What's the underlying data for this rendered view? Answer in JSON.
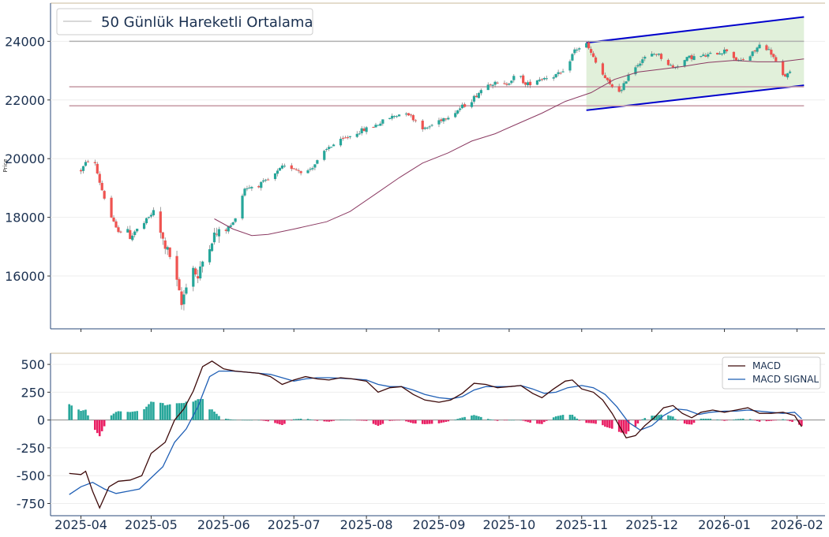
{
  "chart_data": [
    {
      "type": "candlestick",
      "panel": "price",
      "ylabel": "Price",
      "ylim": [
        14200,
        25300
      ],
      "yticks": [
        16000,
        18000,
        20000,
        22000,
        24000
      ],
      "grid": true,
      "legend": {
        "position": "top-left",
        "entries": [
          "50 Günlük Hareketli Ortalama"
        ]
      },
      "colors": {
        "up": "#26a69a",
        "down": "#ef5350",
        "ma": "#8b3a62",
        "channel": "#0000cc",
        "channel_fill": "#dcedd3",
        "hline_grey": "#b0b0b0",
        "hline_pink": "#c9a0aa"
      },
      "horizontal_lines": [
        {
          "value": 24000,
          "color": "grey",
          "from": "2025-03-27",
          "to": "2026-02-04"
        },
        {
          "value": 22450,
          "color": "pink",
          "from": "2025-03-27",
          "to": "2026-02-04"
        },
        {
          "value": 21800,
          "color": "pink",
          "from": "2025-03-27",
          "to": "2026-02-04"
        }
      ],
      "channel": {
        "upper": [
          [
            "2025-11-03",
            23950
          ],
          [
            "2026-02-04",
            24830
          ]
        ],
        "lower": [
          [
            "2025-11-03",
            21650
          ],
          [
            "2026-02-04",
            22500
          ]
        ]
      },
      "moving_average_50": [
        [
          "2025-05-28",
          17950
        ],
        [
          "2025-06-05",
          17600
        ],
        [
          "2025-06-13",
          17380
        ],
        [
          "2025-06-20",
          17420
        ],
        [
          "2025-07-01",
          17600
        ],
        [
          "2025-07-15",
          17850
        ],
        [
          "2025-07-25",
          18200
        ],
        [
          "2025-08-05",
          18800
        ],
        [
          "2025-08-15",
          19350
        ],
        [
          "2025-08-25",
          19850
        ],
        [
          "2025-09-05",
          20200
        ],
        [
          "2025-09-15",
          20600
        ],
        [
          "2025-09-25",
          20850
        ],
        [
          "2025-10-05",
          21200
        ],
        [
          "2025-10-15",
          21550
        ],
        [
          "2025-10-25",
          21950
        ],
        [
          "2025-11-05",
          22250
        ],
        [
          "2025-11-15",
          22700
        ],
        [
          "2025-11-25",
          22950
        ],
        [
          "2025-12-05",
          23050
        ],
        [
          "2025-12-15",
          23150
        ],
        [
          "2025-12-25",
          23280
        ],
        [
          "2026-01-05",
          23350
        ],
        [
          "2026-01-15",
          23300
        ],
        [
          "2026-01-25",
          23300
        ],
        [
          "2026-02-04",
          23400
        ]
      ],
      "anchors": [
        [
          "2025-04-01",
          19600
        ],
        [
          "2025-04-04",
          19950
        ],
        [
          "2025-04-07",
          19800
        ],
        [
          "2025-04-09",
          19200
        ],
        [
          "2025-04-12",
          18400
        ],
        [
          "2025-04-16",
          17600
        ],
        [
          "2025-04-22",
          17400
        ],
        [
          "2025-04-27",
          17700
        ],
        [
          "2025-05-02",
          18200
        ],
        [
          "2025-05-06",
          17200
        ],
        [
          "2025-05-10",
          16500
        ],
        [
          "2025-05-14",
          15000
        ],
        [
          "2025-05-18",
          16500
        ],
        [
          "2025-05-21",
          15900
        ],
        [
          "2025-05-24",
          16800
        ],
        [
          "2025-05-28",
          17400
        ],
        [
          "2025-06-01",
          17500
        ],
        [
          "2025-06-05",
          17800
        ],
        [
          "2025-06-10",
          19000
        ],
        [
          "2025-06-16",
          19100
        ],
        [
          "2025-06-21",
          19300
        ],
        [
          "2025-06-26",
          19700
        ],
        [
          "2025-07-01",
          19700
        ],
        [
          "2025-07-06",
          19500
        ],
        [
          "2025-07-11",
          19900
        ],
        [
          "2025-07-16",
          20400
        ],
        [
          "2025-07-21",
          20600
        ],
        [
          "2025-07-28",
          20900
        ],
        [
          "2025-08-04",
          21100
        ],
        [
          "2025-08-11",
          21400
        ],
        [
          "2025-08-18",
          21600
        ],
        [
          "2025-08-26",
          21000
        ],
        [
          "2025-09-01",
          21300
        ],
        [
          "2025-09-08",
          21600
        ],
        [
          "2025-09-15",
          22000
        ],
        [
          "2025-09-22",
          22600
        ],
        [
          "2025-09-29",
          22500
        ],
        [
          "2025-10-05",
          22900
        ],
        [
          "2025-10-08",
          22500
        ],
        [
          "2025-10-13",
          22700
        ],
        [
          "2025-10-18",
          22800
        ],
        [
          "2025-10-24",
          22900
        ],
        [
          "2025-10-29",
          23700
        ],
        [
          "2025-11-03",
          23900
        ],
        [
          "2025-11-08",
          23100
        ],
        [
          "2025-11-13",
          22500
        ],
        [
          "2025-11-18",
          22300
        ],
        [
          "2025-11-21",
          22900
        ],
        [
          "2025-11-27",
          23400
        ],
        [
          "2025-12-03",
          23600
        ],
        [
          "2025-12-07",
          23300
        ],
        [
          "2025-12-10",
          23100
        ],
        [
          "2025-12-17",
          23450
        ],
        [
          "2025-12-24",
          23500
        ],
        [
          "2026-01-02",
          23700
        ],
        [
          "2026-01-07",
          23300
        ],
        [
          "2026-01-12",
          23500
        ],
        [
          "2026-01-17",
          23950
        ],
        [
          "2026-01-21",
          23600
        ],
        [
          "2026-01-26",
          22800
        ],
        [
          "2026-01-29",
          22900
        ]
      ]
    },
    {
      "type": "line+bar",
      "panel": "macd",
      "ylim": [
        -860,
        600
      ],
      "yticks": [
        -750,
        -500,
        -250,
        0,
        250,
        500
      ],
      "legend": {
        "position": "top-right",
        "entries": [
          "MACD",
          "MACD SIGNAL"
        ]
      },
      "colors": {
        "macd": "#3d0a0a",
        "signal": "#1f5fb5",
        "hist_pos": "#26a69a",
        "hist_neg": "#e91e63",
        "zero": "#888888"
      },
      "macd": [
        [
          "2025-03-27",
          -480
        ],
        [
          "2025-04-01",
          -490
        ],
        [
          "2025-04-03",
          -460
        ],
        [
          "2025-04-06",
          -640
        ],
        [
          "2025-04-09",
          -790
        ],
        [
          "2025-04-13",
          -600
        ],
        [
          "2025-04-17",
          -550
        ],
        [
          "2025-04-22",
          -540
        ],
        [
          "2025-04-27",
          -500
        ],
        [
          "2025-05-01",
          -300
        ],
        [
          "2025-05-07",
          -200
        ],
        [
          "2025-05-11",
          0
        ],
        [
          "2025-05-15",
          100
        ],
        [
          "2025-05-19",
          260
        ],
        [
          "2025-05-23",
          480
        ],
        [
          "2025-05-27",
          530
        ],
        [
          "2025-06-01",
          460
        ],
        [
          "2025-06-06",
          440
        ],
        [
          "2025-06-11",
          430
        ],
        [
          "2025-06-16",
          420
        ],
        [
          "2025-06-21",
          390
        ],
        [
          "2025-06-26",
          320
        ],
        [
          "2025-07-01",
          360
        ],
        [
          "2025-07-06",
          390
        ],
        [
          "2025-07-11",
          370
        ],
        [
          "2025-07-16",
          360
        ],
        [
          "2025-07-21",
          380
        ],
        [
          "2025-07-26",
          370
        ],
        [
          "2025-08-01",
          350
        ],
        [
          "2025-08-06",
          250
        ],
        [
          "2025-08-11",
          290
        ],
        [
          "2025-08-16",
          300
        ],
        [
          "2025-08-21",
          230
        ],
        [
          "2025-08-26",
          180
        ],
        [
          "2025-09-01",
          160
        ],
        [
          "2025-09-06",
          180
        ],
        [
          "2025-09-11",
          240
        ],
        [
          "2025-09-16",
          330
        ],
        [
          "2025-09-21",
          320
        ],
        [
          "2025-09-26",
          290
        ],
        [
          "2025-10-01",
          300
        ],
        [
          "2025-10-06",
          310
        ],
        [
          "2025-10-11",
          240
        ],
        [
          "2025-10-15",
          200
        ],
        [
          "2025-10-20",
          280
        ],
        [
          "2025-10-25",
          350
        ],
        [
          "2025-10-28",
          360
        ],
        [
          "2025-11-01",
          280
        ],
        [
          "2025-11-06",
          250
        ],
        [
          "2025-11-10",
          180
        ],
        [
          "2025-11-14",
          60
        ],
        [
          "2025-11-17",
          -50
        ],
        [
          "2025-11-20",
          -160
        ],
        [
          "2025-11-24",
          -140
        ],
        [
          "2025-11-28",
          -50
        ],
        [
          "2025-12-02",
          20
        ],
        [
          "2025-12-06",
          110
        ],
        [
          "2025-12-10",
          130
        ],
        [
          "2025-12-14",
          60
        ],
        [
          "2025-12-18",
          20
        ],
        [
          "2025-12-22",
          70
        ],
        [
          "2025-12-27",
          90
        ],
        [
          "2026-01-01",
          70
        ],
        [
          "2026-01-06",
          90
        ],
        [
          "2026-01-11",
          110
        ],
        [
          "2026-01-16",
          60
        ],
        [
          "2026-01-21",
          60
        ],
        [
          "2026-01-26",
          70
        ],
        [
          "2026-01-31",
          40
        ],
        [
          "2026-02-03",
          -60
        ]
      ],
      "signal": [
        [
          "2025-03-27",
          -670
        ],
        [
          "2025-04-01",
          -600
        ],
        [
          "2025-04-06",
          -560
        ],
        [
          "2025-04-11",
          -620
        ],
        [
          "2025-04-16",
          -660
        ],
        [
          "2025-04-21",
          -640
        ],
        [
          "2025-04-26",
          -620
        ],
        [
          "2025-05-01",
          -520
        ],
        [
          "2025-05-06",
          -420
        ],
        [
          "2025-05-11",
          -200
        ],
        [
          "2025-05-16",
          -80
        ],
        [
          "2025-05-21",
          120
        ],
        [
          "2025-05-26",
          390
        ],
        [
          "2025-05-30",
          440
        ],
        [
          "2025-06-05",
          440
        ],
        [
          "2025-06-11",
          430
        ],
        [
          "2025-06-16",
          420
        ],
        [
          "2025-06-21",
          410
        ],
        [
          "2025-06-26",
          380
        ],
        [
          "2025-07-01",
          350
        ],
        [
          "2025-07-06",
          370
        ],
        [
          "2025-07-11",
          380
        ],
        [
          "2025-07-16",
          380
        ],
        [
          "2025-07-21",
          375
        ],
        [
          "2025-07-26",
          370
        ],
        [
          "2025-08-01",
          360
        ],
        [
          "2025-08-06",
          320
        ],
        [
          "2025-08-11",
          300
        ],
        [
          "2025-08-16",
          300
        ],
        [
          "2025-08-21",
          270
        ],
        [
          "2025-08-26",
          230
        ],
        [
          "2025-09-01",
          200
        ],
        [
          "2025-09-06",
          190
        ],
        [
          "2025-09-11",
          210
        ],
        [
          "2025-09-16",
          270
        ],
        [
          "2025-09-21",
          300
        ],
        [
          "2025-09-26",
          300
        ],
        [
          "2025-10-01",
          300
        ],
        [
          "2025-10-06",
          310
        ],
        [
          "2025-10-11",
          280
        ],
        [
          "2025-10-16",
          240
        ],
        [
          "2025-10-21",
          250
        ],
        [
          "2025-10-26",
          290
        ],
        [
          "2025-11-01",
          310
        ],
        [
          "2025-11-06",
          290
        ],
        [
          "2025-11-11",
          230
        ],
        [
          "2025-11-16",
          120
        ],
        [
          "2025-11-21",
          -20
        ],
        [
          "2025-11-26",
          -90
        ],
        [
          "2025-12-01",
          -50
        ],
        [
          "2025-12-06",
          40
        ],
        [
          "2025-12-11",
          100
        ],
        [
          "2025-12-16",
          90
        ],
        [
          "2025-12-21",
          50
        ],
        [
          "2025-12-26",
          70
        ],
        [
          "2026-01-01",
          80
        ],
        [
          "2026-01-06",
          80
        ],
        [
          "2026-01-11",
          90
        ],
        [
          "2026-01-16",
          80
        ],
        [
          "2026-01-21",
          70
        ],
        [
          "2026-01-26",
          60
        ],
        [
          "2026-01-31",
          70
        ],
        [
          "2026-02-03",
          10
        ]
      ]
    }
  ],
  "x_axis": {
    "start": "2025-03-19",
    "end": "2026-02-13",
    "tick_labels": [
      "2025-04",
      "2025-05",
      "2025-06",
      "2025-07",
      "2025-08",
      "2025-09",
      "2025-10",
      "2025-11",
      "2025-12",
      "2026-01",
      "2026-02"
    ]
  },
  "text": {
    "legend_ma": "50 Günlük Hareketli Ortalama",
    "ylabel": "Price",
    "legend_macd": "MACD",
    "legend_signal": "MACD SIGNAL"
  }
}
